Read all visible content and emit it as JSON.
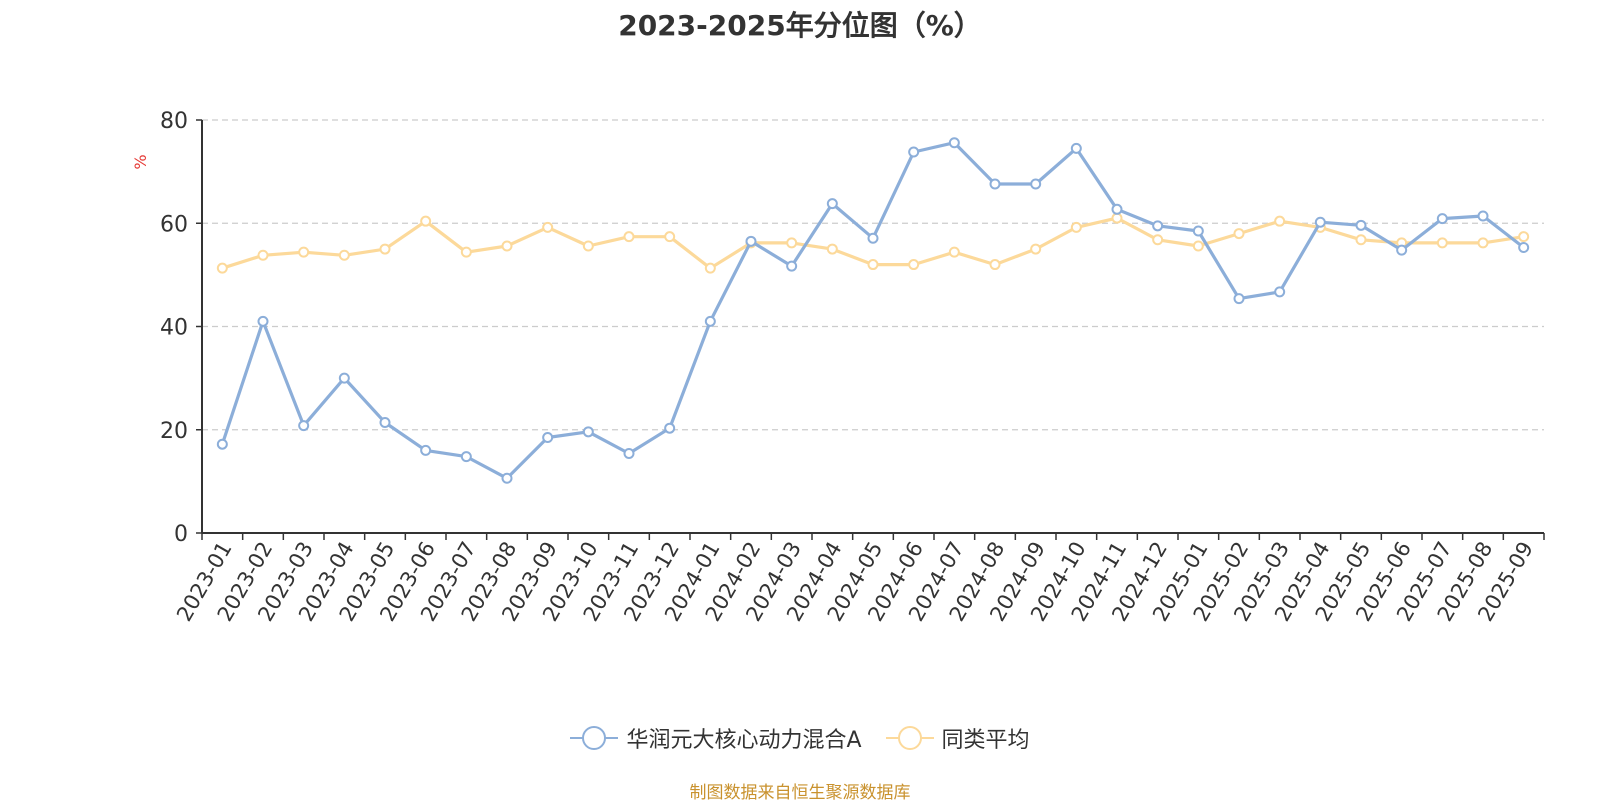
{
  "chart_data": {
    "type": "line",
    "title": "2023-2025年分位图（%）",
    "ylabel": "%",
    "ylim": [
      0,
      80
    ],
    "yticks": [
      0,
      20,
      40,
      60,
      80
    ],
    "grid": true,
    "legend_position": "bottom",
    "categories": [
      "2023-01",
      "2023-02",
      "2023-03",
      "2023-04",
      "2023-05",
      "2023-06",
      "2023-07",
      "2023-08",
      "2023-09",
      "2023-10",
      "2023-11",
      "2023-12",
      "2024-01",
      "2024-02",
      "2024-03",
      "2024-04",
      "2024-05",
      "2024-06",
      "2024-07",
      "2024-08",
      "2024-09",
      "2024-10",
      "2024-11",
      "2024-12",
      "2025-01",
      "2025-02",
      "2025-03",
      "2025-04",
      "2025-05",
      "2025-06",
      "2025-07",
      "2025-08",
      "2025-09"
    ],
    "series": [
      {
        "name": "华润元大核心动力混合A",
        "color": "#8caed9",
        "values": [
          17.2,
          41.0,
          20.8,
          30.0,
          21.4,
          16.0,
          14.8,
          10.6,
          18.5,
          19.6,
          15.4,
          20.3,
          41.0,
          56.5,
          51.7,
          63.8,
          57.1,
          73.8,
          75.6,
          67.6,
          67.6,
          74.5,
          62.7,
          59.5,
          58.5,
          45.4,
          46.7,
          60.2,
          59.6,
          54.8,
          60.9,
          61.4,
          55.3
        ]
      },
      {
        "name": "同类平均",
        "color": "#fcd99a",
        "values": [
          51.3,
          53.8,
          54.4,
          53.8,
          55.0,
          60.4,
          54.4,
          55.6,
          59.2,
          55.6,
          57.4,
          57.4,
          51.3,
          56.2,
          56.2,
          55.0,
          52.0,
          52.0,
          54.4,
          52.0,
          55.0,
          59.2,
          61.0,
          56.8,
          55.6,
          58.0,
          60.4,
          59.2,
          56.8,
          56.2,
          56.2,
          56.2,
          57.4
        ]
      }
    ],
    "source_text": "制图数据来自恒生聚源数据库",
    "source_color": "#c9922e"
  }
}
